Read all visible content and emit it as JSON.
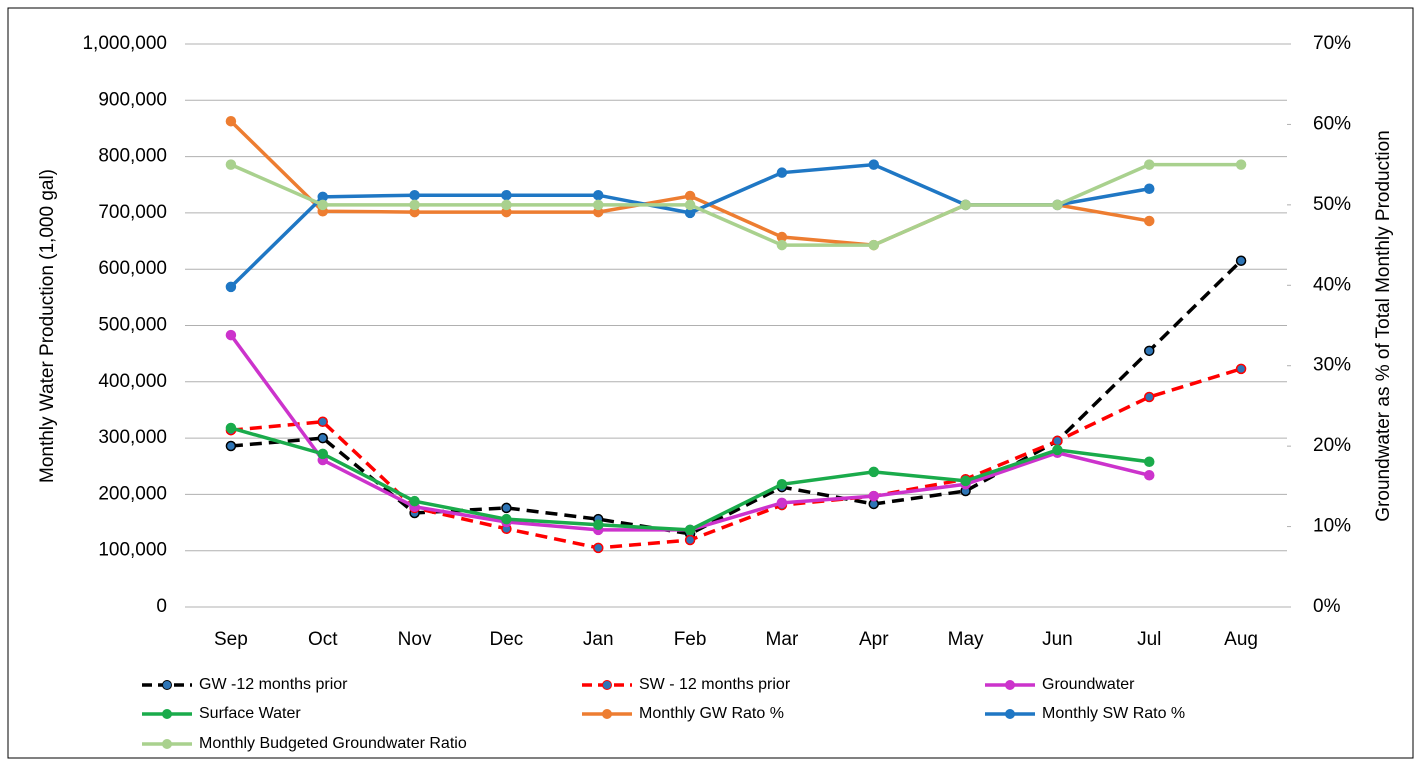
{
  "chart_data": {
    "type": "line",
    "y_label": "Monthly Water Production (1,000 gal)",
    "y2_label": "Groundwater as % of Total Monthly Production",
    "categories": [
      "Sep",
      "Oct",
      "Nov",
      "Dec",
      "Jan",
      "Feb",
      "Mar",
      "Apr",
      "May",
      "Jun",
      "Jul",
      "Aug"
    ],
    "ylim": [
      0,
      1000000
    ],
    "yticks": [
      0,
      {
        "value": 100000,
        "label": "100,000"
      },
      {
        "value": 200000,
        "label": "200,000"
      },
      {
        "value": 300000,
        "label": "300,000"
      },
      {
        "value": 400000,
        "label": "400,000"
      },
      {
        "value": 500000,
        "label": "500,000"
      },
      {
        "value": 600000,
        "label": "600,000"
      },
      {
        "value": 700000,
        "label": "700,000"
      },
      {
        "value": 800000,
        "label": "800,000"
      },
      {
        "value": 900000,
        "label": "900,000"
      },
      {
        "value": 1000000,
        "label": "1,000,000"
      }
    ],
    "y2lim": [
      0,
      70
    ],
    "y2ticks": [
      {
        "value": 0,
        "label": "0%"
      },
      {
        "value": 10,
        "label": "10%"
      },
      {
        "value": 20,
        "label": "20%"
      },
      {
        "value": 30,
        "label": "30%"
      },
      {
        "value": 40,
        "label": "40%"
      },
      {
        "value": 50,
        "label": "50%"
      },
      {
        "value": 60,
        "label": "60%"
      },
      {
        "value": 70,
        "label": "70%"
      }
    ],
    "grid": true,
    "series": [
      {
        "name": "GW -12 months prior",
        "color": "#000000",
        "dashed": true,
        "values": [
          286000,
          300000,
          167000,
          176000,
          156000,
          130000,
          213000,
          183000,
          206000,
          295000,
          455000,
          615000
        ]
      },
      {
        "name": "SW - 12 months prior",
        "color": "#ff0000",
        "dashed": true,
        "values": [
          314000,
          329000,
          176000,
          139000,
          105000,
          119000,
          181000,
          197000,
          227000,
          295000,
          373000,
          423000
        ]
      },
      {
        "name": "Groundwater",
        "color": "#cc33cc",
        "values": [
          483000,
          261000,
          178000,
          151000,
          137000,
          137000,
          185000,
          197000,
          218000,
          274000,
          234000,
          null
        ]
      },
      {
        "name": "Surface Water",
        "color": "#1aab4b",
        "values": [
          318000,
          272000,
          188000,
          156000,
          146000,
          137000,
          218000,
          240000,
          224000,
          279000,
          258000,
          null
        ]
      },
      {
        "name": "Monthly GW Rato %",
        "color": "#ed7d31",
        "axis": "y2",
        "values": [
          60.4,
          49.2,
          49.1,
          49.1,
          49.1,
          51.1,
          46,
          45,
          50,
          50,
          48,
          null
        ]
      },
      {
        "name": "Monthly SW Rato %",
        "color": "#1f77c4",
        "axis": "y2",
        "values": [
          39.8,
          51,
          51.2,
          51.2,
          51.2,
          49,
          54,
          55,
          50,
          50,
          52,
          null
        ]
      },
      {
        "name": "Monthly Budgeted Groundwater Ratio",
        "color": "#a9d18e",
        "axis": "y2",
        "values": [
          55,
          50,
          50,
          50,
          50,
          50,
          45,
          45,
          50,
          50,
          55,
          55
        ]
      }
    ]
  }
}
